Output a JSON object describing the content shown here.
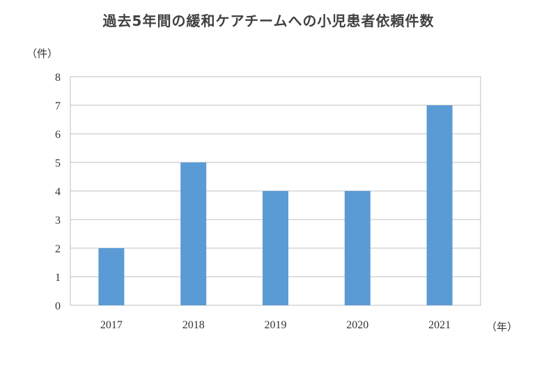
{
  "chart_data": {
    "type": "bar",
    "title": "過去5年間の緩和ケアチームへの小児患者依頼件数",
    "y_unit_label": "（件）",
    "x_unit_label": "（年）",
    "categories": [
      "2017",
      "2018",
      "2019",
      "2020",
      "2021"
    ],
    "values": [
      2,
      5,
      4,
      4,
      7
    ],
    "ylim": [
      0,
      8
    ],
    "yticks": [
      "0",
      "1",
      "2",
      "3",
      "4",
      "5",
      "6",
      "7",
      "8"
    ],
    "grid": true,
    "bar_color": "#5b9bd5",
    "grid_color": "#bfbfbf",
    "legend": "none"
  }
}
